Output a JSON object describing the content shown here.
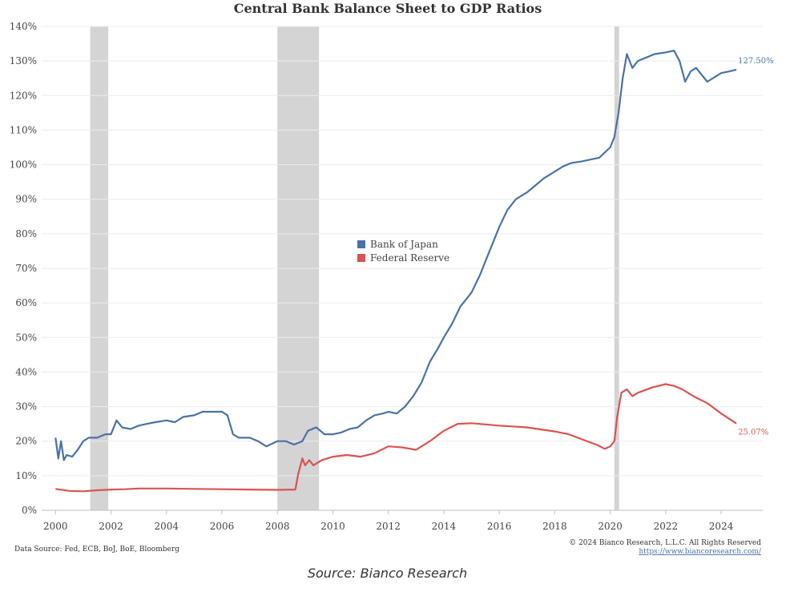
{
  "chart_data": {
    "type": "line",
    "title": "Central Bank Balance Sheet to GDP Ratios",
    "xlabel": "",
    "ylabel": "",
    "xlim": [
      1999.5,
      2025.5
    ],
    "ylim": [
      0,
      140
    ],
    "y_ticks": [
      "0%",
      "10%",
      "20%",
      "30%",
      "40%",
      "50%",
      "60%",
      "70%",
      "80%",
      "90%",
      "100%",
      "110%",
      "120%",
      "130%",
      "140%"
    ],
    "x_ticks": [
      "2000",
      "2002",
      "2004",
      "2006",
      "2008",
      "2010",
      "2012",
      "2014",
      "2016",
      "2018",
      "2020",
      "2022",
      "2024"
    ],
    "grid": "horizontal",
    "legend_position": "center",
    "recessions": [
      [
        2001.25,
        2001.9
      ],
      [
        2008.0,
        2009.5
      ],
      [
        2020.15,
        2020.32
      ]
    ],
    "recession_color": "#d4d4d4",
    "series": [
      {
        "name": "Bank of Japan",
        "color": "#4a72a5",
        "end_label": "127.50%",
        "x": [
          2000.0,
          2000.1,
          2000.2,
          2000.3,
          2000.4,
          2000.6,
          2000.8,
          2001.0,
          2001.2,
          2001.5,
          2001.8,
          2002.0,
          2002.2,
          2002.4,
          2002.7,
          2003.0,
          2003.3,
          2003.6,
          2004.0,
          2004.3,
          2004.6,
          2005.0,
          2005.3,
          2005.7,
          2006.0,
          2006.2,
          2006.4,
          2006.6,
          2007.0,
          2007.3,
          2007.6,
          2008.0,
          2008.3,
          2008.6,
          2008.9,
          2009.1,
          2009.4,
          2009.7,
          2010.0,
          2010.3,
          2010.6,
          2010.9,
          2011.2,
          2011.5,
          2011.8,
          2012.0,
          2012.3,
          2012.6,
          2012.9,
          2013.2,
          2013.5,
          2013.8,
          2014.0,
          2014.3,
          2014.6,
          2015.0,
          2015.3,
          2015.6,
          2016.0,
          2016.3,
          2016.6,
          2017.0,
          2017.3,
          2017.6,
          2018.0,
          2018.3,
          2018.6,
          2019.0,
          2019.3,
          2019.6,
          2020.0,
          2020.15,
          2020.3,
          2020.45,
          2020.6,
          2020.8,
          2021.0,
          2021.3,
          2021.6,
          2022.0,
          2022.3,
          2022.5,
          2022.7,
          2022.9,
          2023.1,
          2023.3,
          2023.5,
          2023.7,
          2024.0,
          2024.3,
          2024.55
        ],
        "values": [
          21,
          15,
          20,
          14.5,
          16,
          15.5,
          17.5,
          20,
          21,
          21,
          22,
          22,
          26,
          24,
          23.5,
          24.5,
          25,
          25.5,
          26,
          25.5,
          27,
          27.5,
          28.5,
          28.5,
          28.5,
          27.5,
          22,
          21,
          21,
          20,
          18.5,
          20,
          20,
          19,
          20,
          23,
          24,
          22,
          22,
          22.5,
          23.5,
          24,
          26,
          27.5,
          28,
          28.5,
          28,
          30,
          33,
          37,
          43,
          47,
          50,
          54,
          59,
          63,
          68,
          74,
          82,
          87,
          90,
          92,
          94,
          96,
          98,
          99.5,
          100.5,
          101,
          101.5,
          102,
          105,
          108,
          115,
          125,
          132,
          128,
          130,
          131,
          132,
          132.5,
          133,
          130,
          124,
          127,
          128,
          126,
          124,
          125,
          126.5,
          127,
          127.5
        ]
      },
      {
        "name": "Federal Reserve",
        "color": "#d9534f",
        "end_label": "25.07%",
        "x": [
          2000.0,
          2000.5,
          2001.0,
          2001.5,
          2002.0,
          2002.5,
          2003.0,
          2004.0,
          2005.0,
          2006.0,
          2007.0,
          2008.0,
          2008.65,
          2008.75,
          2008.9,
          2009.0,
          2009.15,
          2009.3,
          2009.6,
          2010.0,
          2010.5,
          2011.0,
          2011.5,
          2012.0,
          2012.5,
          2013.0,
          2013.5,
          2014.0,
          2014.5,
          2015.0,
          2016.0,
          2017.0,
          2018.0,
          2018.5,
          2019.0,
          2019.5,
          2019.8,
          2020.0,
          2020.15,
          2020.25,
          2020.4,
          2020.6,
          2020.8,
          2021.0,
          2021.5,
          2022.0,
          2022.3,
          2022.6,
          2023.0,
          2023.5,
          2024.0,
          2024.55
        ],
        "values": [
          6.2,
          5.6,
          5.5,
          5.8,
          6.0,
          6.1,
          6.3,
          6.3,
          6.2,
          6.1,
          6.0,
          5.9,
          6.0,
          10.5,
          15,
          13,
          14.5,
          13,
          14.5,
          15.5,
          16,
          15.5,
          16.5,
          18.5,
          18.2,
          17.5,
          20,
          23,
          25,
          25.2,
          24.5,
          24,
          22.8,
          22,
          20.5,
          19,
          17.8,
          18.5,
          20,
          27,
          34,
          35,
          33,
          34,
          35.5,
          36.5,
          36,
          35,
          33,
          31,
          28,
          25.1
        ]
      }
    ],
    "footer_left": "Data Source: Fed, ECB, BoJ, BoE, Bloomberg",
    "footer_right_1": "© 2024 Bianco Research, L.L.C. All Rights Reserved",
    "footer_right_2": "https://www.biancoresearch.com/"
  },
  "caption": "Source: Bianco Research"
}
